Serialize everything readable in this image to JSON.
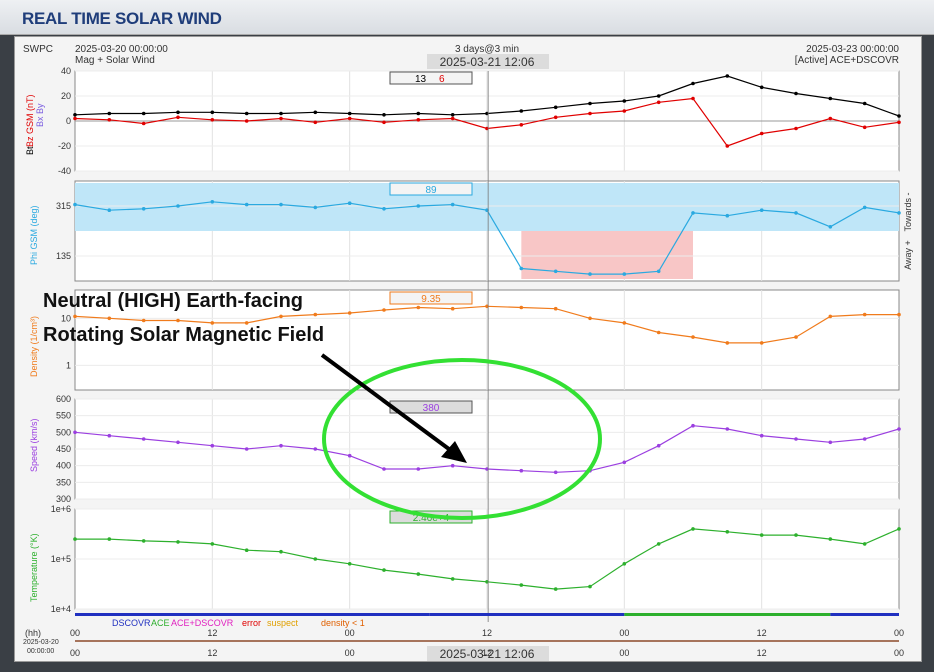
{
  "header": {
    "title": "REAL TIME SOLAR WIND"
  },
  "top": {
    "org": "SWPC",
    "start": "2025-03-20 00:00:00",
    "product": "Mag + Solar Wind",
    "span": "3 days@3 min",
    "cursor": "2025-03-21 12:06",
    "end": "2025-03-23 00:00:00",
    "source": "[Active] ACE+DSCOVR"
  },
  "panels": {
    "mag": {
      "ylabel_bt": "Bt",
      "ylabel_bz": "Bz GSM (nT)",
      "ylabel_b2": "Bx  By",
      "ticks": [
        "40",
        "20",
        "0",
        "-20",
        "-40"
      ],
      "readout_bt": "13",
      "readout_bz": "6"
    },
    "phi": {
      "ylabel": "Phi GSM (deg)",
      "ticks": [
        "315",
        "135"
      ],
      "readout": "89",
      "right_top": "Towards -",
      "right_bot": "Away +"
    },
    "dens": {
      "ylabel": "Density (1/cm³)",
      "ticks": [
        "10",
        "1"
      ],
      "readout": "9.35"
    },
    "speed": {
      "ylabel": "Speed (km/s)",
      "ticks": [
        "600",
        "550",
        "500",
        "450",
        "400",
        "350",
        "300"
      ],
      "readout": "380"
    },
    "temp": {
      "ylabel": "Temperature (°K)",
      "ticks": [
        "1e+6",
        "1e+5",
        "1e+4"
      ],
      "readout": "2.46e+4"
    }
  },
  "legend": {
    "dscovr": "DSCOVR",
    "ace": "ACE",
    "acedscovr": "ACE+DSCOVR",
    "error": "error",
    "suspect": "suspect",
    "density": "density < 1"
  },
  "xaxis": {
    "hh": "(hh)",
    "ticks": [
      "00",
      "12",
      "00",
      "12",
      "00",
      "12",
      "00"
    ],
    "date_l1": "2025-03-20",
    "date_l2": "00:00:00",
    "cursor": "2025-03-21 12:06"
  },
  "annotation": {
    "line1": "Neutral (HIGH) Earth-facing",
    "line2": "Rotating Solar Magnetic Field"
  },
  "chart_data": [
    {
      "type": "line",
      "ylabel": "Bt / Bz GSM (nT)",
      "ylim": [
        -40,
        40
      ],
      "x": [
        0,
        3,
        6,
        9,
        12,
        15,
        18,
        21,
        24,
        27,
        30,
        33,
        36,
        39,
        42,
        45,
        48,
        51,
        54,
        57,
        60,
        63,
        66,
        69,
        72
      ],
      "series": [
        {
          "name": "Bt",
          "color": "#000000",
          "values": [
            5,
            6,
            6,
            7,
            7,
            6,
            6,
            7,
            6,
            5,
            6,
            5,
            6,
            8,
            11,
            14,
            16,
            20,
            30,
            36,
            27,
            22,
            18,
            14,
            4
          ]
        },
        {
          "name": "Bz",
          "color": "#e00000",
          "values": [
            2,
            1,
            -2,
            3,
            1,
            0,
            2,
            -1,
            2,
            -1,
            1,
            2,
            -6,
            -3,
            3,
            6,
            8,
            15,
            18,
            -20,
            -10,
            -6,
            2,
            -5,
            -1
          ]
        }
      ]
    },
    {
      "type": "scatter",
      "ylabel": "Phi GSM (deg)",
      "ylim": [
        45,
        405
      ],
      "x": [
        0,
        3,
        6,
        9,
        12,
        15,
        18,
        21,
        24,
        27,
        30,
        33,
        36,
        39,
        42,
        45,
        48,
        51,
        54,
        57,
        60,
        63,
        66,
        69,
        72
      ],
      "series": [
        {
          "name": "Phi",
          "color": "#2aa9e0",
          "values": [
            320,
            300,
            305,
            315,
            330,
            320,
            320,
            310,
            325,
            305,
            315,
            320,
            300,
            90,
            80,
            70,
            70,
            80,
            290,
            280,
            300,
            290,
            240,
            310,
            290
          ]
        }
      ]
    },
    {
      "type": "scatter",
      "ylabel": "Density (1/cm³)",
      "ylim": [
        0.3,
        40
      ],
      "yscale": "log",
      "x": [
        0,
        3,
        6,
        9,
        12,
        15,
        18,
        21,
        24,
        27,
        30,
        33,
        36,
        39,
        42,
        45,
        48,
        51,
        54,
        57,
        60,
        63,
        66,
        69,
        72
      ],
      "series": [
        {
          "name": "Density",
          "color": "#f07b1c",
          "values": [
            11,
            10,
            9,
            9,
            8,
            8,
            11,
            12,
            13,
            15,
            17,
            16,
            18,
            17,
            16,
            10,
            8,
            5,
            4,
            3,
            3,
            4,
            11,
            12,
            12
          ]
        }
      ]
    },
    {
      "type": "scatter",
      "ylabel": "Speed (km/s)",
      "ylim": [
        300,
        600
      ],
      "x": [
        0,
        3,
        6,
        9,
        12,
        15,
        18,
        21,
        24,
        27,
        30,
        33,
        36,
        39,
        42,
        45,
        48,
        51,
        54,
        57,
        60,
        63,
        66,
        69,
        72
      ],
      "series": [
        {
          "name": "Speed",
          "color": "#9b3fe0",
          "values": [
            500,
            490,
            480,
            470,
            460,
            450,
            460,
            450,
            430,
            390,
            390,
            400,
            390,
            385,
            380,
            385,
            410,
            460,
            520,
            510,
            490,
            480,
            470,
            480,
            510
          ]
        }
      ]
    },
    {
      "type": "scatter",
      "ylabel": "Temperature (°K)",
      "ylim": [
        10000,
        1000000
      ],
      "yscale": "log",
      "x": [
        0,
        3,
        6,
        9,
        12,
        15,
        18,
        21,
        24,
        27,
        30,
        33,
        36,
        39,
        42,
        45,
        48,
        51,
        54,
        57,
        60,
        63,
        66,
        69,
        72
      ],
      "series": [
        {
          "name": "Temperature",
          "color": "#2db02d",
          "values": [
            250000,
            250000,
            230000,
            220000,
            200000,
            150000,
            140000,
            100000,
            80000,
            60000,
            50000,
            40000,
            35000,
            30000,
            25000,
            28000,
            80000,
            200000,
            400000,
            350000,
            300000,
            300000,
            250000,
            200000,
            400000
          ]
        }
      ]
    }
  ]
}
